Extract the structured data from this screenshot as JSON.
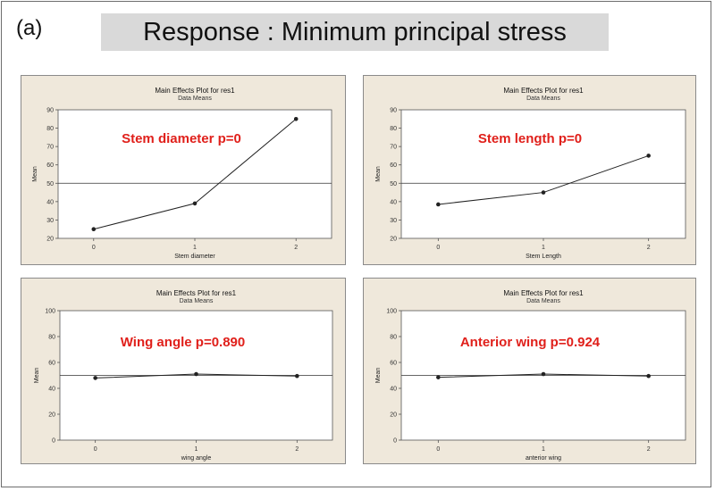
{
  "figure_label": "(a)",
  "title": "Response : Minimum principal stress",
  "chart_data": [
    {
      "type": "line",
      "title": "Main Effects Plot for res1",
      "subtitle": "Data Means",
      "annotation": "Stem diameter p=0",
      "xlabel": "Stem diameter",
      "ylabel": "Mean",
      "categories": [
        "0",
        "1",
        "2"
      ],
      "values": [
        25,
        39,
        85
      ],
      "ylim": [
        20,
        90
      ],
      "yticks": [
        20,
        30,
        40,
        50,
        60,
        70,
        80,
        90
      ],
      "reference_line": 50,
      "colors": {
        "annotation": "#e0201b",
        "line": "#222222",
        "background": "#efe8db"
      }
    },
    {
      "type": "line",
      "title": "Main Effects Plot for res1",
      "subtitle": "Data Means",
      "annotation": "Stem length p=0",
      "xlabel": "Stem Length",
      "ylabel": "Mean",
      "categories": [
        "0",
        "1",
        "2"
      ],
      "values": [
        38.5,
        45,
        65
      ],
      "ylim": [
        20,
        90
      ],
      "yticks": [
        20,
        30,
        40,
        50,
        60,
        70,
        80,
        90
      ],
      "reference_line": 50,
      "colors": {
        "annotation": "#e0201b",
        "line": "#222222",
        "background": "#efe8db"
      }
    },
    {
      "type": "line",
      "title": "Main Effects Plot for res1",
      "subtitle": "Data Means",
      "annotation": "Wing angle p=0.890",
      "xlabel": "wing angle",
      "ylabel": "Mean",
      "categories": [
        "0",
        "1",
        "2"
      ],
      "values": [
        48,
        51,
        49.5
      ],
      "ylim": [
        0,
        100
      ],
      "yticks": [
        0,
        20,
        40,
        60,
        80,
        100
      ],
      "reference_line": 50,
      "colors": {
        "annotation": "#e0201b",
        "line": "#222222",
        "background": "#efe8db"
      }
    },
    {
      "type": "line",
      "title": "Main Effects Plot for res1",
      "subtitle": "Data Means",
      "annotation": "Anterior wing p=0.924",
      "xlabel": "anterior wing",
      "ylabel": "Mean",
      "categories": [
        "0",
        "1",
        "2"
      ],
      "values": [
        48.5,
        51,
        49.5
      ],
      "ylim": [
        0,
        100
      ],
      "yticks": [
        0,
        20,
        40,
        60,
        80,
        100
      ],
      "reference_line": 50,
      "colors": {
        "annotation": "#e0201b",
        "line": "#222222",
        "background": "#efe8db"
      }
    }
  ]
}
